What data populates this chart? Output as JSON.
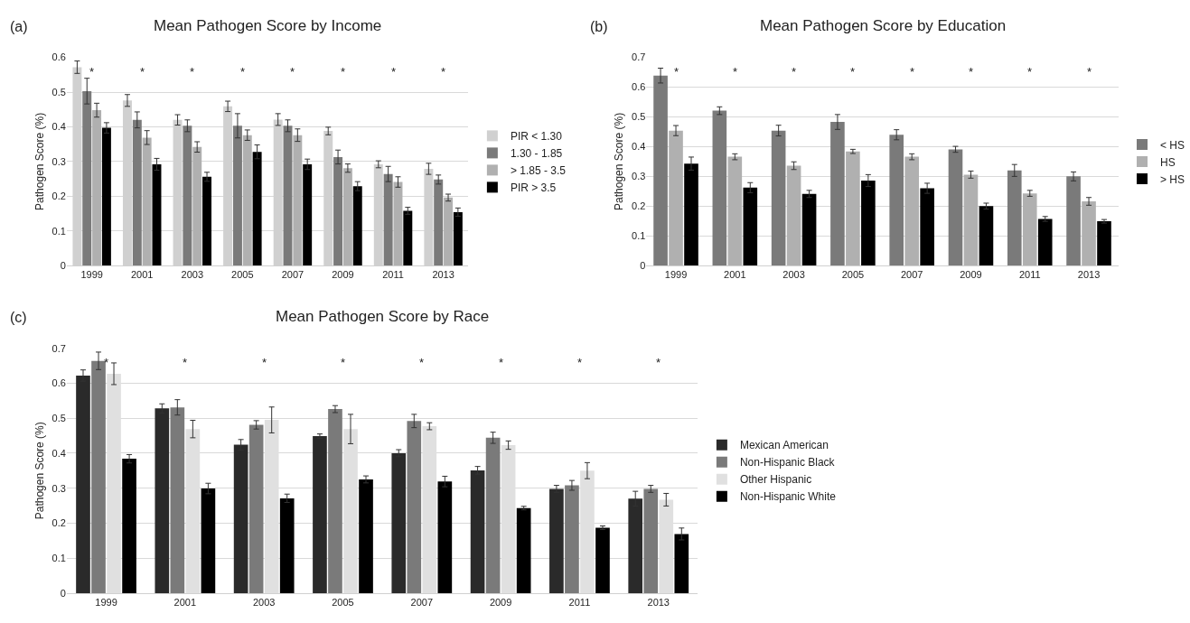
{
  "chart_data": [
    {
      "type": "bar",
      "title": "Mean Pathogen Score by Income",
      "ylabel": "Pathogen Score (%)",
      "categories": [
        "1999",
        "2001",
        "2003",
        "2005",
        "2007",
        "2009",
        "2011",
        "2013"
      ],
      "series": [
        {
          "name": "PIR < 1.30",
          "color": "#d0d0d0",
          "values": [
            0.572,
            0.476,
            0.42,
            0.459,
            0.421,
            0.388,
            0.292,
            0.279
          ],
          "errors": [
            0.018,
            0.017,
            0.015,
            0.015,
            0.017,
            0.011,
            0.01,
            0.016
          ]
        },
        {
          "name": "1.30 - 1.85",
          "color": "#7a7a7a",
          "values": [
            0.503,
            0.42,
            0.403,
            0.403,
            0.403,
            0.313,
            0.264,
            0.248
          ],
          "errors": [
            0.037,
            0.023,
            0.017,
            0.035,
            0.017,
            0.02,
            0.022,
            0.013
          ]
        },
        {
          "name": "> 1.85 - 3.5",
          "color": "#b0b0b0",
          "values": [
            0.448,
            0.369,
            0.342,
            0.376,
            0.376,
            0.281,
            0.241,
            0.196
          ],
          "errors": [
            0.02,
            0.02,
            0.015,
            0.015,
            0.018,
            0.012,
            0.015,
            0.01
          ]
        },
        {
          "name": "PIR > 3.5",
          "color": "#000000",
          "values": [
            0.397,
            0.292,
            0.256,
            0.328,
            0.292,
            0.229,
            0.158,
            0.154
          ],
          "errors": [
            0.015,
            0.017,
            0.013,
            0.02,
            0.015,
            0.013,
            0.01,
            0.012
          ]
        }
      ],
      "ylim": [
        0,
        0.6
      ],
      "yticks": [
        0,
        0.1,
        0.2,
        0.3,
        0.4,
        0.5,
        0.6
      ],
      "grid": "y",
      "legend": "right",
      "annotations": [
        "(a)",
        "*",
        "*",
        "*",
        "*",
        "*",
        "*",
        "*",
        "*"
      ]
    },
    {
      "type": "bar",
      "title": "Mean Pathogen Score by Education",
      "ylabel": "Pathogen Score (%)",
      "categories": [
        "1999",
        "2001",
        "2003",
        "2005",
        "2007",
        "2009",
        "2011",
        "2013"
      ],
      "series": [
        {
          "name": "< HS",
          "color": "#7a7a7a",
          "values": [
            0.639,
            0.521,
            0.454,
            0.483,
            0.44,
            0.391,
            0.32,
            0.3
          ],
          "errors": [
            0.025,
            0.013,
            0.018,
            0.025,
            0.017,
            0.01,
            0.02,
            0.015
          ]
        },
        {
          "name": "HS",
          "color": "#b0b0b0",
          "values": [
            0.454,
            0.366,
            0.336,
            0.384,
            0.366,
            0.306,
            0.243,
            0.216
          ],
          "errors": [
            0.017,
            0.01,
            0.013,
            0.007,
            0.01,
            0.012,
            0.01,
            0.013
          ]
        },
        {
          "name": "> HS",
          "color": "#000000",
          "values": [
            0.343,
            0.262,
            0.241,
            0.286,
            0.26,
            0.2,
            0.157,
            0.149
          ],
          "errors": [
            0.022,
            0.017,
            0.012,
            0.02,
            0.017,
            0.01,
            0.008,
            0.006
          ]
        }
      ],
      "ylim": [
        0,
        0.7
      ],
      "yticks": [
        0,
        0.1,
        0.2,
        0.3,
        0.4,
        0.5,
        0.6,
        0.7
      ],
      "grid": "y",
      "legend": "right",
      "annotations": [
        "(b)",
        "*",
        "*",
        "*",
        "*",
        "*",
        "*",
        "*",
        "*"
      ]
    },
    {
      "type": "bar",
      "title": "Mean Pathogen Score by Race",
      "ylabel": "Pathogen Score (%)",
      "categories": [
        "1999",
        "2001",
        "2003",
        "2005",
        "2007",
        "2009",
        "2011",
        "2013"
      ],
      "series": [
        {
          "name": "Mexican American",
          "color": "#2a2a2a",
          "values": [
            0.622,
            0.528,
            0.424,
            0.449,
            0.4,
            0.351,
            0.298,
            0.27
          ],
          "errors": [
            0.016,
            0.013,
            0.015,
            0.006,
            0.01,
            0.011,
            0.01,
            0.021
          ]
        },
        {
          "name": "Non-Hispanic Black",
          "color": "#7a7a7a",
          "values": [
            0.664,
            0.531,
            0.481,
            0.526,
            0.492,
            0.444,
            0.308,
            0.298
          ],
          "errors": [
            0.025,
            0.022,
            0.012,
            0.01,
            0.019,
            0.016,
            0.014,
            0.01
          ]
        },
        {
          "name": "Other Hispanic",
          "color": "#e0e0e0",
          "values": [
            0.627,
            0.469,
            0.495,
            0.469,
            0.477,
            0.423,
            0.35,
            0.267
          ],
          "errors": [
            0.031,
            0.025,
            0.037,
            0.042,
            0.01,
            0.012,
            0.023,
            0.018
          ]
        },
        {
          "name": "Non-Hispanic White",
          "color": "#000000",
          "values": [
            0.384,
            0.299,
            0.271,
            0.325,
            0.319,
            0.243,
            0.187,
            0.169
          ],
          "errors": [
            0.012,
            0.015,
            0.012,
            0.01,
            0.015,
            0.005,
            0.005,
            0.017
          ]
        }
      ],
      "ylim": [
        0,
        0.7
      ],
      "yticks": [
        0,
        0.1,
        0.2,
        0.3,
        0.4,
        0.5,
        0.6,
        0.7
      ],
      "grid": "y",
      "legend": "right",
      "annotations": [
        "(c)",
        "*",
        "*",
        "*",
        "*",
        "*",
        "*",
        "*",
        "*"
      ]
    }
  ]
}
